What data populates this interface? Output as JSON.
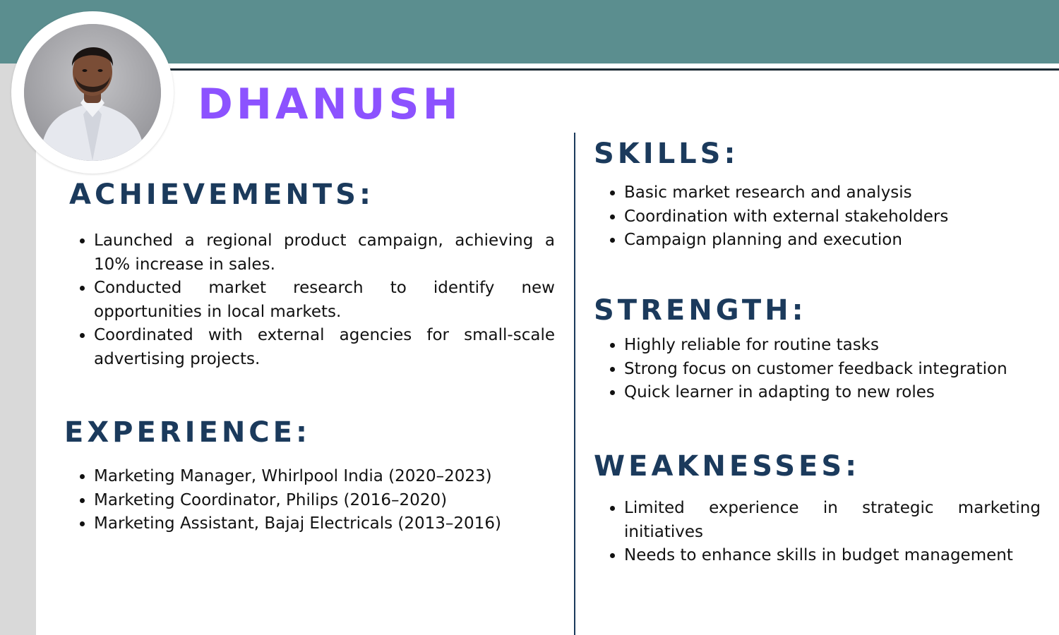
{
  "profile": {
    "name": "DHANUSH"
  },
  "colors": {
    "band": "#5b8e8f",
    "name": "#8c52ff",
    "heading": "#1b3a5c",
    "text": "#111111",
    "strip": "#d9d9d9"
  },
  "achievements": {
    "heading": "ACHIEVEMENTS:",
    "items": [
      "Launched a regional product campaign, achieving a 10% increase in sales.",
      "Conducted market research to identify new opportunities in local markets.",
      "Coordinated with external agencies for small-scale advertising projects."
    ]
  },
  "experience": {
    "heading": "EXPERIENCE:",
    "items": [
      "Marketing Manager, Whirlpool India (2020–2023)",
      "Marketing Coordinator, Philips (2016–2020)",
      "Marketing Assistant, Bajaj Electricals (2013–2016)"
    ]
  },
  "skills": {
    "heading": "SKILLS:",
    "items": [
      "Basic market research and analysis",
      "Coordination with external stakeholders",
      "Campaign planning and execution"
    ]
  },
  "strength": {
    "heading": "STRENGTH:",
    "items": [
      "Highly reliable for routine tasks",
      "Strong focus on customer feedback integration",
      "Quick learner in adapting to new roles"
    ]
  },
  "weaknesses": {
    "heading": "WEAKNESSES:",
    "items": [
      "Limited experience in strategic marketing initiatives",
      "Needs to enhance skills in budget management"
    ]
  }
}
